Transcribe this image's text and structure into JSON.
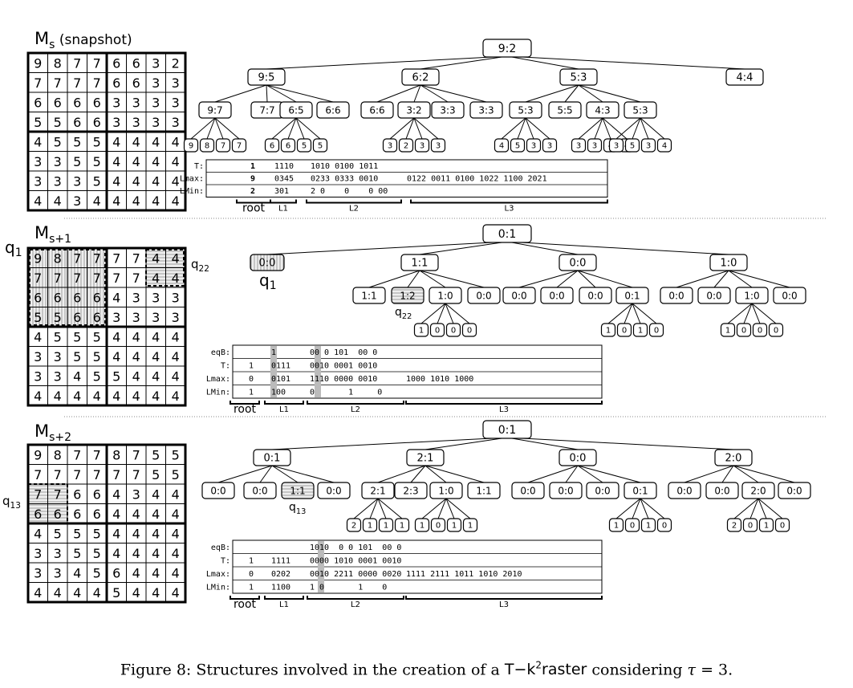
{
  "figure": {
    "caption": {
      "prefix": "Figure 8: Structures involved in the creation of a ",
      "method_T": "T",
      "method_dash": "−",
      "method_k": "k",
      "method_sup": "2",
      "method_raster": "raster",
      "middle": " considering ",
      "tau": "τ",
      "suffix": " = 3."
    },
    "panels": [
      {
        "label_main": "M",
        "label_sub": "s",
        "label_extra": " (snapshot)",
        "matrix": [
          [
            "9",
            "8",
            "7",
            "7",
            "6",
            "6",
            "3",
            "2"
          ],
          [
            "7",
            "7",
            "7",
            "7",
            "6",
            "6",
            "3",
            "3"
          ],
          [
            "6",
            "6",
            "6",
            "6",
            "3",
            "3",
            "3",
            "3"
          ],
          [
            "5",
            "5",
            "6",
            "6",
            "3",
            "3",
            "3",
            "3"
          ],
          [
            "4",
            "5",
            "5",
            "5",
            "4",
            "4",
            "4",
            "4"
          ],
          [
            "3",
            "3",
            "5",
            "5",
            "4",
            "4",
            "4",
            "4"
          ],
          [
            "3",
            "3",
            "3",
            "5",
            "4",
            "4",
            "4",
            "4"
          ],
          [
            "4",
            "4",
            "3",
            "4",
            "4",
            "4",
            "4",
            "4"
          ]
        ],
        "root": "9:2",
        "level1": [
          "9:5",
          "6:2",
          "5:3",
          "4:4"
        ],
        "level2": [
          [
            "9:7",
            "7:7",
            "6:5",
            "6:6"
          ],
          [
            "6:6",
            "3:2",
            "3:3",
            "3:3"
          ],
          [
            "5:3",
            "5:5",
            "4:3",
            "5:3"
          ],
          []
        ],
        "leaf_groups": [
          {
            "parent": [
              0,
              0
            ],
            "values": [
              "9",
              "8",
              "7",
              "7"
            ]
          },
          {
            "parent": [
              0,
              2
            ],
            "values": [
              "6",
              "6",
              "5",
              "5"
            ]
          },
          {
            "parent": [
              1,
              1
            ],
            "values": [
              "3",
              "2",
              "3",
              "3"
            ]
          },
          {
            "parent": [
              2,
              0
            ],
            "values": [
              "4",
              "5",
              "3",
              "3"
            ]
          },
          {
            "parent": [
              2,
              2
            ],
            "values": [
              "3",
              "3",
              "4",
              "4"
            ]
          },
          {
            "parent": [
              2,
              3
            ],
            "values": [
              "3",
              "5",
              "3",
              "4"
            ]
          }
        ],
        "table_rows": [
          {
            "label": "T:",
            "cells": [
              "1",
              "1110",
              "1010 0100 1011",
              ""
            ]
          },
          {
            "label": "Lmax:",
            "cells": [
              "9",
              "0345",
              "0233 0333 0010",
              "0122 0011 0100 1022 1100 2021"
            ]
          },
          {
            "label": "LMin:",
            "cells": [
              "2",
              "301",
              "2 0    0    0 00",
              ""
            ]
          }
        ],
        "braces": [
          "root",
          "L1",
          "L2",
          "L3"
        ]
      },
      {
        "label_main": "M",
        "label_sub": "s+1",
        "label_extra": "",
        "matrix": [
          [
            "9",
            "8",
            "7",
            "7",
            "7",
            "7",
            "4",
            "4"
          ],
          [
            "7",
            "7",
            "7",
            "7",
            "7",
            "7",
            "4",
            "4"
          ],
          [
            "6",
            "6",
            "6",
            "6",
            "4",
            "3",
            "3",
            "3"
          ],
          [
            "5",
            "5",
            "6",
            "6",
            "3",
            "3",
            "3",
            "3"
          ],
          [
            "4",
            "5",
            "5",
            "5",
            "4",
            "4",
            "4",
            "4"
          ],
          [
            "3",
            "3",
            "5",
            "5",
            "4",
            "4",
            "4",
            "4"
          ],
          [
            "3",
            "3",
            "4",
            "5",
            "5",
            "4",
            "4",
            "4"
          ],
          [
            "4",
            "4",
            "4",
            "4",
            "4",
            "4",
            "4",
            "4"
          ]
        ],
        "region_labels": {
          "q1": "q",
          "q1_sub": "1",
          "q22": "q",
          "q22_sub": "22"
        },
        "root": "0:1",
        "level1": [
          "0:0",
          "1:1",
          "0:0",
          "1:0"
        ],
        "level2": [
          [],
          [
            "1:1",
            "1:2",
            "1:0",
            "0:0"
          ],
          [
            "0:0",
            "0:0",
            "0:0",
            "0:1"
          ],
          [
            "0:0",
            "0:0",
            "1:0",
            "0:0"
          ]
        ],
        "leaf_groups": [
          {
            "parent": [
              1,
              2
            ],
            "values": [
              "1",
              "0",
              "0",
              "0"
            ]
          },
          {
            "parent": [
              2,
              3
            ],
            "values": [
              "1",
              "0",
              "1",
              "0"
            ]
          },
          {
            "parent": [
              3,
              2
            ],
            "values": [
              "1",
              "0",
              "0",
              "0"
            ]
          }
        ],
        "table_rows": [
          {
            "label": "eqB:",
            "cells": [
              "",
              "1",
              "00 0 101  00 0",
              ""
            ]
          },
          {
            "label": "T:",
            "cells": [
              "1",
              "0111",
              "0010 0001 0010",
              ""
            ]
          },
          {
            "label": "Lmax:",
            "cells": [
              "0",
              "0101",
              "1110 0000 0010",
              "1000 1010 1000"
            ]
          },
          {
            "label": "LMin:",
            "cells": [
              "1",
              "100",
              "0       1     0",
              ""
            ]
          }
        ],
        "braces": [
          "root",
          "L1",
          "L2",
          "L3"
        ]
      },
      {
        "label_main": "M",
        "label_sub": "s+2",
        "label_extra": "",
        "matrix": [
          [
            "9",
            "8",
            "7",
            "7",
            "8",
            "7",
            "5",
            "5"
          ],
          [
            "7",
            "7",
            "7",
            "7",
            "7",
            "7",
            "5",
            "5"
          ],
          [
            "7",
            "7",
            "6",
            "6",
            "4",
            "3",
            "4",
            "4"
          ],
          [
            "6",
            "6",
            "6",
            "6",
            "4",
            "4",
            "4",
            "4"
          ],
          [
            "4",
            "5",
            "5",
            "5",
            "4",
            "4",
            "4",
            "4"
          ],
          [
            "3",
            "3",
            "5",
            "5",
            "4",
            "4",
            "4",
            "4"
          ],
          [
            "3",
            "3",
            "4",
            "5",
            "6",
            "4",
            "4",
            "4"
          ],
          [
            "4",
            "4",
            "4",
            "4",
            "5",
            "4",
            "4",
            "4"
          ]
        ],
        "region_labels": {
          "q13": "q",
          "q13_sub": "13"
        },
        "root": "0:1",
        "level1": [
          "0:1",
          "2:1",
          "0:0",
          "2:0"
        ],
        "level2": [
          [
            "0:0",
            "0:0",
            "1:1",
            "0:0"
          ],
          [
            "2:1",
            "2:3",
            "1:0",
            "1:1"
          ],
          [
            "0:0",
            "0:0",
            "0:0",
            "0:1"
          ],
          [
            "0:0",
            "0:0",
            "2:0",
            "0:0"
          ]
        ],
        "leaf_groups": [
          {
            "parent": [
              1,
              0
            ],
            "values": [
              "2",
              "1",
              "1",
              "1"
            ]
          },
          {
            "parent": [
              1,
              2
            ],
            "values": [
              "1",
              "0",
              "1",
              "1"
            ]
          },
          {
            "parent": [
              2,
              3
            ],
            "values": [
              "1",
              "0",
              "1",
              "0"
            ]
          },
          {
            "parent": [
              3,
              2
            ],
            "values": [
              "2",
              "0",
              "1",
              "0"
            ]
          }
        ],
        "table_rows": [
          {
            "label": "eqB:",
            "cells": [
              "",
              "",
              "1010  0 0 101  00 0",
              ""
            ]
          },
          {
            "label": "T:",
            "cells": [
              "1",
              "1111",
              "0000 1010 0001 0010",
              ""
            ]
          },
          {
            "label": "Lmax:",
            "cells": [
              "0",
              "0202",
              "0010 2211 0000 0020",
              "1111 2111 1011 1010 2010"
            ]
          },
          {
            "label": "LMin:",
            "cells": [
              "1",
              "1100",
              "1 0       1    0",
              ""
            ]
          }
        ],
        "braces": [
          "root",
          "L1",
          "L2",
          "L3"
        ]
      }
    ]
  }
}
